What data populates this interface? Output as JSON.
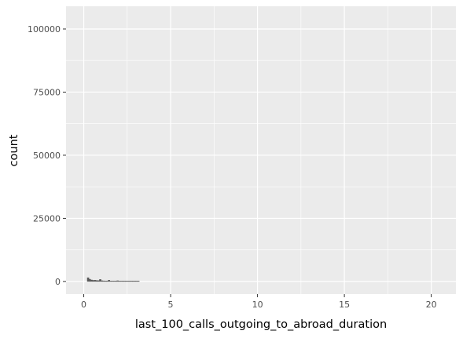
{
  "chart_data": {
    "type": "bar",
    "title": "",
    "xlabel": "last_100_calls_outgoing_to_abroad_duration",
    "ylabel": "count",
    "xlim": [
      -1.02,
      21.42
    ],
    "ylim": [
      -5000,
      109000
    ],
    "x_ticks": [
      0,
      5,
      10,
      15,
      20
    ],
    "x_tick_labels": [
      "0",
      "5",
      "10",
      "15",
      "20"
    ],
    "y_ticks": [
      0,
      25000,
      50000,
      75000,
      100000
    ],
    "y_tick_labels": [
      "0",
      "25000",
      "50000",
      "75000",
      "100000"
    ],
    "grid": true,
    "legend": "none",
    "panel_background": "#ebebeb",
    "grid_color": "#ffffff",
    "bar_fill": "#595959",
    "bar_outline": "#595959",
    "bins": [
      {
        "x": 0.25,
        "count": 1500
      },
      {
        "x": 0.35,
        "count": 900
      },
      {
        "x": 0.45,
        "count": 600
      },
      {
        "x": 0.55,
        "count": 450
      },
      {
        "x": 0.65,
        "count": 500
      },
      {
        "x": 0.75,
        "count": 400
      },
      {
        "x": 0.85,
        "count": 350
      },
      {
        "x": 0.95,
        "count": 800
      },
      {
        "x": 1.05,
        "count": 300
      },
      {
        "x": 1.15,
        "count": 250
      },
      {
        "x": 1.25,
        "count": 200
      },
      {
        "x": 1.35,
        "count": 150
      },
      {
        "x": 1.45,
        "count": 500
      },
      {
        "x": 1.55,
        "count": 150
      },
      {
        "x": 1.65,
        "count": 120
      },
      {
        "x": 1.75,
        "count": 100
      },
      {
        "x": 1.85,
        "count": 80
      },
      {
        "x": 1.95,
        "count": 300
      },
      {
        "x": 2.05,
        "count": 80
      },
      {
        "x": 2.15,
        "count": 60
      },
      {
        "x": 2.25,
        "count": 50
      },
      {
        "x": 2.35,
        "count": 40
      },
      {
        "x": 2.45,
        "count": 150
      },
      {
        "x": 2.55,
        "count": 40
      },
      {
        "x": 2.65,
        "count": 30
      },
      {
        "x": 2.75,
        "count": 25
      },
      {
        "x": 2.85,
        "count": 20
      },
      {
        "x": 2.95,
        "count": 100
      },
      {
        "x": 3.05,
        "count": 15
      },
      {
        "x": 3.15,
        "count": 10
      }
    ],
    "bin_width": 0.1
  }
}
